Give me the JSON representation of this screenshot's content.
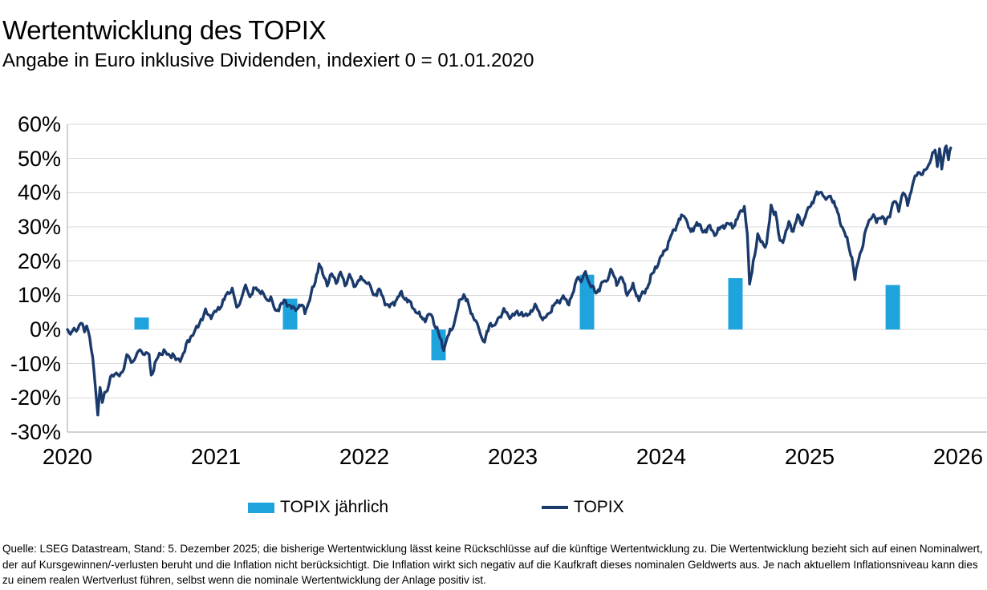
{
  "header": {
    "title": "Wertentwicklung des TOPIX",
    "subtitle": "Angabe in Euro inklusive Dividenden, indexiert 0 = 01.01.2020"
  },
  "legend": {
    "bar_label": "TOPIX jährlich",
    "line_label": "TOPIX"
  },
  "footer": {
    "text": "Quelle: LSEG Datastream, Stand: 5. Dezember 2025; die bisherige Wertentwicklung lässt keine Rückschlüsse auf die künftige Wertentwicklung zu. Die Wertentwicklung bezieht sich auf einen Nominalwert, der auf Kursgewinnen/-verlusten beruht und die Inflation nicht berücksichtigt. Die Inflation wirkt sich negativ auf die Kaufkraft dieses nominalen Geldwerts aus. Je nach aktuellem Inflationsniveau kann dies zu einem realen Wertverlust führen, selbst wenn die nominale Wertentwicklung der Anlage positiv ist."
  },
  "colors": {
    "line": "#1B3A6C",
    "bar": "#1FA3DC",
    "grid": "#D9D9D9",
    "axis": "#A6A6A6",
    "text": "#000000"
  },
  "chart_data": {
    "type": "line+bar",
    "title": "Wertentwicklung des TOPIX",
    "subtitle": "Angabe in Euro inklusive Dividenden, indexiert 0 = 01.01.2020",
    "ylabel": "",
    "xlabel": "",
    "ylim": [
      -30,
      60
    ],
    "grid": true,
    "y_ticks": [
      "60%",
      "50%",
      "40%",
      "30%",
      "20%",
      "10%",
      "0%",
      "-10%",
      "-20%",
      "-30%"
    ],
    "y_tick_values": [
      60,
      50,
      40,
      30,
      20,
      10,
      0,
      -10,
      -20,
      -30
    ],
    "x_ticks": [
      "2020",
      "2021",
      "2022",
      "2023",
      "2024",
      "2025",
      "2026"
    ],
    "series": [
      {
        "name": "TOPIX jährlich",
        "type": "bar",
        "years": [
          2020,
          2021,
          2022,
          2023,
          2024,
          2025
        ],
        "values_pct": [
          3.5,
          9,
          -9,
          16,
          15,
          13
        ],
        "t_positions": [
          0.5,
          1.5,
          2.5,
          3.5,
          4.5,
          5.56
        ]
      },
      {
        "name": "TOPIX",
        "type": "line",
        "points_t_pct": [
          [
            0,
            0
          ],
          [
            0.02,
            -1.5
          ],
          [
            0.045,
            0.5
          ],
          [
            0.06,
            -0.5
          ],
          [
            0.08,
            1
          ],
          [
            0.1,
            2
          ],
          [
            0.115,
            -0.5
          ],
          [
            0.13,
            1.5
          ],
          [
            0.15,
            -3
          ],
          [
            0.17,
            -8
          ],
          [
            0.19,
            -17
          ],
          [
            0.205,
            -25.5
          ],
          [
            0.22,
            -17
          ],
          [
            0.235,
            -21.5
          ],
          [
            0.25,
            -17.5
          ],
          [
            0.27,
            -18.5
          ],
          [
            0.29,
            -14
          ],
          [
            0.32,
            -12.5
          ],
          [
            0.35,
            -14
          ],
          [
            0.38,
            -11
          ],
          [
            0.4,
            -7.5
          ],
          [
            0.43,
            -9.5
          ],
          [
            0.46,
            -8
          ],
          [
            0.49,
            -6
          ],
          [
            0.52,
            -7
          ],
          [
            0.55,
            -7.5
          ],
          [
            0.565,
            -13.5
          ],
          [
            0.59,
            -10
          ],
          [
            0.62,
            -7.5
          ],
          [
            0.65,
            -6
          ],
          [
            0.68,
            -8
          ],
          [
            0.71,
            -7
          ],
          [
            0.74,
            -9.5
          ],
          [
            0.77,
            -8
          ],
          [
            0.8,
            -5
          ],
          [
            0.83,
            -2
          ],
          [
            0.87,
            0
          ],
          [
            0.9,
            3
          ],
          [
            0.93,
            5
          ],
          [
            0.96,
            4
          ],
          [
            1,
            5
          ],
          [
            1.04,
            7.5
          ],
          [
            1.08,
            10.5
          ],
          [
            1.11,
            12
          ],
          [
            1.14,
            6
          ],
          [
            1.17,
            9
          ],
          [
            1.2,
            12.5
          ],
          [
            1.23,
            10
          ],
          [
            1.27,
            12
          ],
          [
            1.31,
            11
          ],
          [
            1.34,
            8.5
          ],
          [
            1.37,
            9.5
          ],
          [
            1.4,
            5
          ],
          [
            1.44,
            7.5
          ],
          [
            1.47,
            8
          ],
          [
            1.5,
            7
          ],
          [
            1.53,
            5.5
          ],
          [
            1.57,
            7.5
          ],
          [
            1.6,
            5
          ],
          [
            1.64,
            10
          ],
          [
            1.67,
            14
          ],
          [
            1.695,
            19.5
          ],
          [
            1.72,
            16
          ],
          [
            1.75,
            13.5
          ],
          [
            1.78,
            16
          ],
          [
            1.81,
            14
          ],
          [
            1.84,
            16.5
          ],
          [
            1.87,
            13
          ],
          [
            1.9,
            16
          ],
          [
            1.93,
            12.5
          ],
          [
            1.96,
            14.5
          ],
          [
            2,
            14.5
          ],
          [
            2.03,
            13.5
          ],
          [
            2.06,
            10
          ],
          [
            2.1,
            11.5
          ],
          [
            2.14,
            8
          ],
          [
            2.17,
            6.5
          ],
          [
            2.21,
            8.5
          ],
          [
            2.25,
            10.5
          ],
          [
            2.29,
            8.5
          ],
          [
            2.33,
            6.5
          ],
          [
            2.37,
            4
          ],
          [
            2.41,
            3
          ],
          [
            2.45,
            4.5
          ],
          [
            2.48,
            1
          ],
          [
            2.51,
            -2.5
          ],
          [
            2.535,
            -5.5
          ],
          [
            2.57,
            -1.5
          ],
          [
            2.61,
            2.5
          ],
          [
            2.64,
            8
          ],
          [
            2.67,
            10.5
          ],
          [
            2.71,
            6
          ],
          [
            2.75,
            2.5
          ],
          [
            2.78,
            -1
          ],
          [
            2.81,
            -3.7
          ],
          [
            2.85,
            2
          ],
          [
            2.88,
            1
          ],
          [
            2.91,
            3.5
          ],
          [
            2.94,
            6
          ],
          [
            2.97,
            3.5
          ],
          [
            3,
            4.5
          ],
          [
            3.03,
            4.5
          ],
          [
            3.06,
            5
          ],
          [
            3.09,
            3.5
          ],
          [
            3.13,
            6
          ],
          [
            3.16,
            6.5
          ],
          [
            3.21,
            2.6
          ],
          [
            3.26,
            6
          ],
          [
            3.3,
            8
          ],
          [
            3.34,
            9.5
          ],
          [
            3.37,
            7.5
          ],
          [
            3.41,
            11
          ],
          [
            3.44,
            16
          ],
          [
            3.46,
            14
          ],
          [
            3.49,
            16.5
          ],
          [
            3.52,
            13.5
          ],
          [
            3.56,
            10.5
          ],
          [
            3.6,
            13.5
          ],
          [
            3.63,
            14
          ],
          [
            3.66,
            17.5
          ],
          [
            3.7,
            13.5
          ],
          [
            3.73,
            15.5
          ],
          [
            3.77,
            10.5
          ],
          [
            3.81,
            12.5
          ],
          [
            3.85,
            9
          ],
          [
            3.89,
            11
          ],
          [
            3.93,
            15
          ],
          [
            3.96,
            18
          ],
          [
            4,
            21
          ],
          [
            4.04,
            24.5
          ],
          [
            4.08,
            28.5
          ],
          [
            4.12,
            32
          ],
          [
            4.16,
            33.5
          ],
          [
            4.2,
            28
          ],
          [
            4.24,
            31.5
          ],
          [
            4.28,
            28.5
          ],
          [
            4.32,
            30
          ],
          [
            4.36,
            28
          ],
          [
            4.4,
            29.5
          ],
          [
            4.44,
            31
          ],
          [
            4.48,
            30
          ],
          [
            4.52,
            33
          ],
          [
            4.56,
            36
          ],
          [
            4.58,
            28
          ],
          [
            4.595,
            12.5
          ],
          [
            4.62,
            20
          ],
          [
            4.65,
            27
          ],
          [
            4.68,
            25.5
          ],
          [
            4.71,
            24.5
          ],
          [
            4.74,
            36
          ],
          [
            4.77,
            34
          ],
          [
            4.8,
            25.5
          ],
          [
            4.83,
            27
          ],
          [
            4.86,
            31
          ],
          [
            4.89,
            29
          ],
          [
            4.92,
            33
          ],
          [
            4.95,
            31
          ],
          [
            4.98,
            34
          ],
          [
            5,
            36
          ],
          [
            5.04,
            39
          ],
          [
            5.08,
            40.5
          ],
          [
            5.11,
            37.5
          ],
          [
            5.14,
            39.5
          ],
          [
            5.18,
            35
          ],
          [
            5.22,
            30
          ],
          [
            5.26,
            25
          ],
          [
            5.285,
            21
          ],
          [
            5.305,
            14.5
          ],
          [
            5.33,
            21
          ],
          [
            5.36,
            25
          ],
          [
            5.39,
            31
          ],
          [
            5.42,
            33.5
          ],
          [
            5.45,
            31.5
          ],
          [
            5.48,
            33.5
          ],
          [
            5.51,
            31
          ],
          [
            5.54,
            34
          ],
          [
            5.57,
            37.5
          ],
          [
            5.6,
            35.5
          ],
          [
            5.63,
            40
          ],
          [
            5.66,
            37
          ],
          [
            5.7,
            43
          ],
          [
            5.73,
            46.5
          ],
          [
            5.76,
            45
          ],
          [
            5.79,
            47.5
          ],
          [
            5.82,
            50
          ],
          [
            5.845,
            52.5
          ],
          [
            5.86,
            48
          ],
          [
            5.875,
            53.5
          ],
          [
            5.89,
            46.5
          ],
          [
            5.905,
            51
          ],
          [
            5.92,
            54
          ],
          [
            5.935,
            50.5
          ],
          [
            5.95,
            53
          ]
        ]
      }
    ],
    "legend_position": "bottom"
  }
}
